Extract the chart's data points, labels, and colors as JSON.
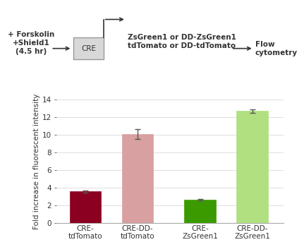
{
  "categories": [
    "CRE-\ntdTomato",
    "CRE-DD-\ntdTomato",
    "CRE-\nZsGreen1",
    "CRE-DD-\nZsGreen1"
  ],
  "values": [
    3.55,
    10.05,
    2.6,
    12.7
  ],
  "errors": [
    0.12,
    0.55,
    0.1,
    0.2
  ],
  "bar_colors": [
    "#8B0020",
    "#D8A0A0",
    "#3A9A00",
    "#B0E080"
  ],
  "ylabel": "Fold increase in fluorescent intensity",
  "ylim": [
    0,
    14
  ],
  "yticks": [
    0,
    2,
    4,
    6,
    8,
    10,
    12,
    14
  ],
  "background_color": "#ffffff",
  "grid_color": "#dddddd",
  "text_color": "#333333",
  "fontsize_diag": 7.5,
  "fontsize_bar": 7.5,
  "left_label": "+ Forskolin\n+Shield1\n(4.5 hr)",
  "cre_label": "CRE",
  "middle_label": "ZsGreen1 or DD-ZsGreen1\ntdTomato or DD-tdTomato",
  "right_label": "Flow\ncytometry"
}
